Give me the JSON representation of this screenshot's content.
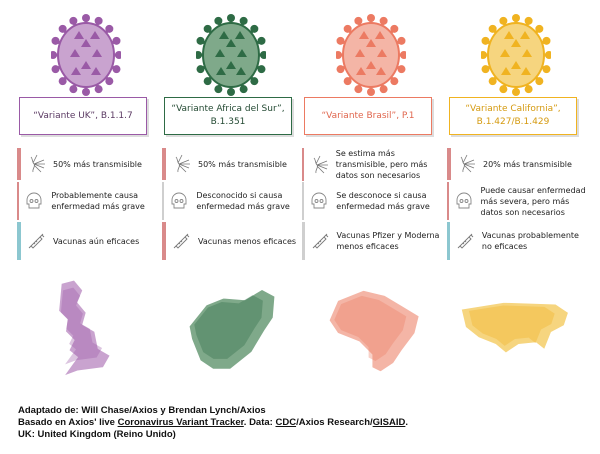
{
  "colors": {
    "bar_red": "#d98a8a",
    "bar_gray": "#cfcfcf",
    "bar_blue": "#8cc7d0"
  },
  "variants": [
    {
      "title": "“Variante UK”, B.1.1.7",
      "color": "#9a5aa6",
      "light": "#c9a3cf",
      "text_color": "#5b3a63",
      "map": "uk",
      "rows": [
        {
          "icon": "spread-icon",
          "text": "50% más transmisible",
          "bar": "red"
        },
        {
          "icon": "skull-icon",
          "text": "Probablemente causa enfermedad más grave",
          "bar": "red"
        },
        {
          "icon": "syringe-icon",
          "text": "Vacunas aún eficaces",
          "bar": "blue"
        }
      ]
    },
    {
      "title": "“Variante Africa del Sur”, B.1.351",
      "color": "#2e6b45",
      "light": "#7fa98a",
      "text_color": "#244a33",
      "map": "south-africa",
      "rows": [
        {
          "icon": "spread-icon",
          "text": "50% más transmisible",
          "bar": "red"
        },
        {
          "icon": "skull-icon",
          "text": "Desconocido si causa enfermedad más grave",
          "bar": "gray"
        },
        {
          "icon": "syringe-icon",
          "text": "Vacunas menos eficaces",
          "bar": "red"
        }
      ]
    },
    {
      "title": "“Variante Brasil”, P.1",
      "color": "#ec7a62",
      "light": "#f4b5a6",
      "text_color": "#e0664e",
      "map": "brazil",
      "rows": [
        {
          "icon": "spread-icon",
          "text": "Se estima más transmisible, pero más datos son necesarios",
          "bar": "red"
        },
        {
          "icon": "skull-icon",
          "text": "Se desconoce si causa enfermedad más grave",
          "bar": "gray"
        },
        {
          "icon": "syringe-icon",
          "text": "Vacunas Pfizer y Moderna menos eficaces",
          "bar": "gray"
        }
      ]
    },
    {
      "title": "“Variante California”, B.1.427/B.1.429",
      "color": "#f0b321",
      "light": "#f6d57f",
      "text_color": "#d59a10",
      "map": "usa",
      "rows": [
        {
          "icon": "spread-icon",
          "text": "20% más transmisible",
          "bar": "red"
        },
        {
          "icon": "skull-icon",
          "text": "Puede causar enfermedad más severa, pero más datos son necesarios",
          "bar": "red"
        },
        {
          "icon": "syringe-icon",
          "text": "Vacunas probablemente no eficaces",
          "bar": "blue"
        }
      ]
    }
  ],
  "footer": {
    "line1": "Adaptado de: Will Chase/Axios y Brendan Lynch/Axios",
    "line2_a": "Basado en Axios' live ",
    "link_tracker": "Coronavirus Variant Tracker",
    "line2_b": ". Data: ",
    "link_cdc": "CDC",
    "line2_c": "/Axios Research/",
    "link_gisaid": "GISAID",
    "line2_d": ".",
    "line3": "UK: United Kingdom (Reino Unido)"
  }
}
